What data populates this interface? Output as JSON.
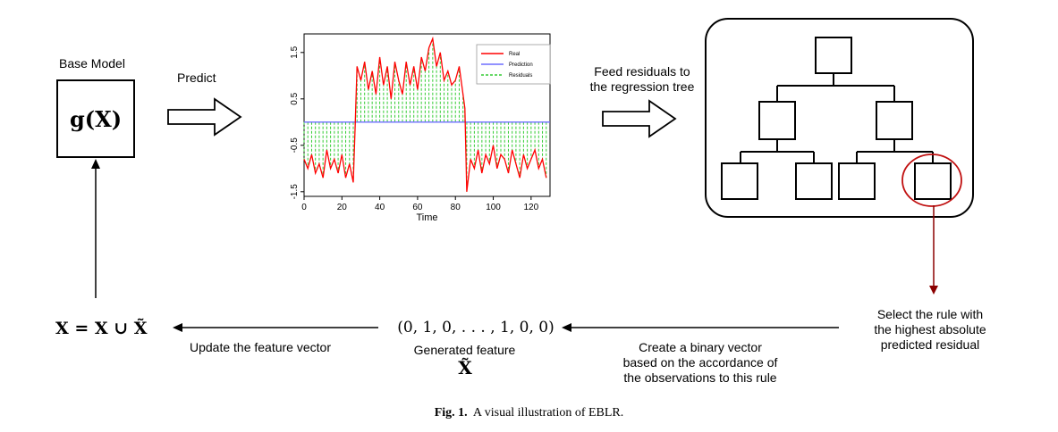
{
  "base_model": {
    "title": "Base Model",
    "function_text": "g(X)"
  },
  "steps": {
    "predict": "Predict",
    "feed_residuals_line1": "Feed residuals to",
    "feed_residuals_line2": "the regression tree",
    "select_rule_line1": "Select the rule with",
    "select_rule_line2": "the highest absolute",
    "select_rule_line3": "predicted residual",
    "binary_vector_line1": "Create a binary vector",
    "binary_vector_line2": "based on the accordance of",
    "binary_vector_line3": "the observations to this rule",
    "generated_vector": "(0, 1, 0, . . . , 1, 0, 0)",
    "generated_feature_label": "Generated feature",
    "generated_feature_symbol": "X̃",
    "update_feature": "Update the feature vector",
    "update_formula": "X = X ∪ X̃"
  },
  "chart_data": {
    "type": "line",
    "xlabel": "Time",
    "ylabel": "",
    "xlim": [
      0,
      130
    ],
    "ylim": [
      -1.6,
      1.9
    ],
    "x_ticks": [
      "0",
      "20",
      "40",
      "60",
      "80",
      "100",
      "120"
    ],
    "y_ticks": [
      "-1.5",
      "-0.5",
      "0.5",
      "1.5"
    ],
    "x_tick_values": [
      0,
      20,
      40,
      60,
      80,
      100,
      120
    ],
    "y_tick_values": [
      -1.5,
      -0.5,
      0.5,
      1.5
    ],
    "legend": [
      "Real",
      "Prediction",
      "Residuals"
    ],
    "legend_position": "top-right",
    "colors": {
      "real": "#ff0000",
      "prediction": "#6f6fff",
      "residuals": "#33cc33"
    },
    "series": [
      {
        "name": "Prediction",
        "x": [
          0,
          130
        ],
        "values": [
          0,
          0
        ]
      },
      {
        "name": "Real",
        "x": [
          0,
          2,
          4,
          6,
          8,
          10,
          12,
          14,
          16,
          18,
          20,
          22,
          24,
          26,
          27,
          28,
          30,
          32,
          34,
          36,
          38,
          40,
          42,
          44,
          46,
          48,
          50,
          52,
          54,
          56,
          58,
          60,
          62,
          64,
          66,
          68,
          70,
          72,
          74,
          76,
          78,
          80,
          82,
          84,
          85,
          86,
          88,
          90,
          92,
          94,
          96,
          98,
          100,
          102,
          104,
          106,
          108,
          110,
          112,
          114,
          116,
          118,
          120,
          122,
          124,
          126,
          128
        ],
        "values": [
          -0.8,
          -1.0,
          -0.7,
          -1.1,
          -0.9,
          -1.2,
          -0.6,
          -1.0,
          -0.8,
          -1.1,
          -0.7,
          -1.2,
          -0.9,
          -1.3,
          -0.1,
          1.2,
          0.9,
          1.3,
          0.7,
          1.1,
          0.6,
          1.4,
          0.8,
          1.2,
          0.5,
          1.3,
          0.9,
          0.6,
          1.3,
          0.8,
          1.2,
          0.7,
          1.4,
          1.1,
          1.6,
          1.8,
          1.2,
          1.5,
          0.9,
          1.1,
          0.8,
          0.9,
          1.2,
          0.6,
          0.3,
          -1.5,
          -0.8,
          -1.0,
          -0.6,
          -1.1,
          -0.7,
          -0.9,
          -0.5,
          -1.0,
          -0.7,
          -0.8,
          -1.1,
          -0.6,
          -0.9,
          -1.2,
          -0.7,
          -1.0,
          -0.8,
          -0.6,
          -1.0,
          -0.8,
          -1.2
        ]
      }
    ]
  }
}
